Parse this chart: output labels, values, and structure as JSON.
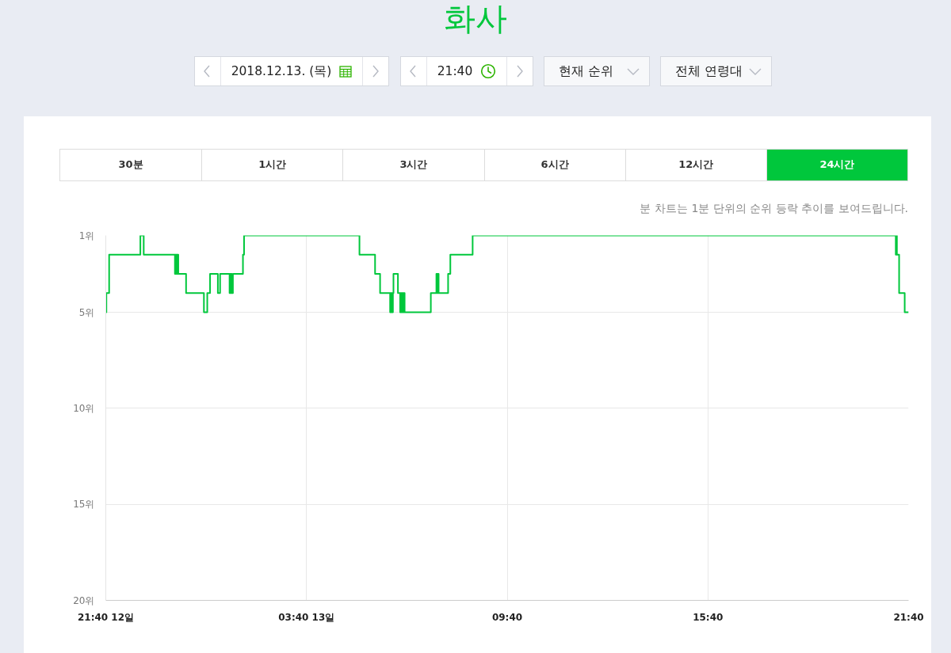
{
  "chart_data": {
    "type": "step",
    "title": "화사",
    "annotations": [
      "2018.12.13. (목)",
      "21:40",
      "현재 순위",
      "전체 연령대",
      "30분",
      "1시간",
      "3시간",
      "6시간",
      "12시간",
      "24시간",
      "분 차트는 1분 단위의 순위 등락 추이를 보여드립니다."
    ],
    "x": [
      "2018-12-12T21:40",
      "2018-12-12T21:41",
      "2018-12-12T21:46",
      "2018-12-12T22:42",
      "2018-12-12T22:48",
      "2018-12-12T23:44",
      "2018-12-12T23:45",
      "2018-12-12T23:46",
      "2018-12-12T23:47",
      "2018-12-12T23:48",
      "2018-12-12T23:49",
      "2018-12-12T23:50",
      "2018-12-13T00:04",
      "2018-12-13T00:36",
      "2018-12-13T00:42",
      "2018-12-13T00:47",
      "2018-12-13T01:01",
      "2018-12-13T01:05",
      "2018-12-13T01:22",
      "2018-12-13T01:23",
      "2018-12-13T01:24",
      "2018-12-13T01:25",
      "2018-12-13T01:26",
      "2018-12-13T01:28",
      "2018-12-13T01:46",
      "2018-12-13T01:48",
      "2018-12-13T05:15",
      "2018-12-13T05:43",
      "2018-12-13T05:52",
      "2018-12-13T06:10",
      "2018-12-13T06:11",
      "2018-12-13T06:12",
      "2018-12-13T06:13",
      "2018-12-13T06:14",
      "2018-12-13T06:15",
      "2018-12-13T06:16",
      "2018-12-13T06:24",
      "2018-12-13T06:28",
      "2018-12-13T06:29",
      "2018-12-13T06:30",
      "2018-12-13T06:31",
      "2018-12-13T06:32",
      "2018-12-13T06:33",
      "2018-12-13T06:34",
      "2018-12-13T06:35",
      "2018-12-13T06:36",
      "2018-12-13T07:23",
      "2018-12-13T07:33",
      "2018-12-13T07:35",
      "2018-12-13T07:36",
      "2018-12-13T07:37",
      "2018-12-13T07:54",
      "2018-12-13T07:58",
      "2018-12-13T08:38",
      "2018-12-13T21:17",
      "2018-12-13T21:18",
      "2018-12-13T21:19",
      "2018-12-13T21:23",
      "2018-12-13T21:33",
      "2018-12-13T21:40"
    ],
    "series": [
      {
        "color": "#00c73c",
        "values": [
          5,
          4,
          2,
          1,
          2,
          3,
          2,
          3,
          2,
          3,
          2,
          3,
          4,
          5,
          4,
          3,
          4,
          3,
          4,
          3,
          4,
          3,
          4,
          3,
          2,
          1,
          2,
          3,
          4,
          5,
          4,
          5,
          4,
          5,
          4,
          3,
          4,
          5,
          4,
          5,
          4,
          5,
          4,
          5,
          4,
          5,
          4,
          3,
          4,
          3,
          4,
          3,
          2,
          1,
          2,
          1,
          2,
          4,
          5,
          5
        ]
      }
    ],
    "xlim": [
      "2018-12-12T21:40",
      "2018-12-13T21:40"
    ],
    "xticks": [
      {
        "value": "2018-12-12T21:40",
        "label": "21:40 12일"
      },
      {
        "value": "2018-12-13T03:40",
        "label": "03:40 13일"
      },
      {
        "value": "2018-12-13T09:40",
        "label": "09:40"
      },
      {
        "value": "2018-12-13T15:40",
        "label": "15:40"
      },
      {
        "value": "2018-12-13T21:40",
        "label": "21:40"
      }
    ],
    "ylim": [
      20,
      1
    ],
    "yticks": [
      {
        "value": 1,
        "label": "1위"
      },
      {
        "value": 5,
        "label": "5위"
      },
      {
        "value": 10,
        "label": "10위"
      },
      {
        "value": 15,
        "label": "15위"
      },
      {
        "value": 20,
        "label": "20위"
      }
    ],
    "grid": true
  }
}
